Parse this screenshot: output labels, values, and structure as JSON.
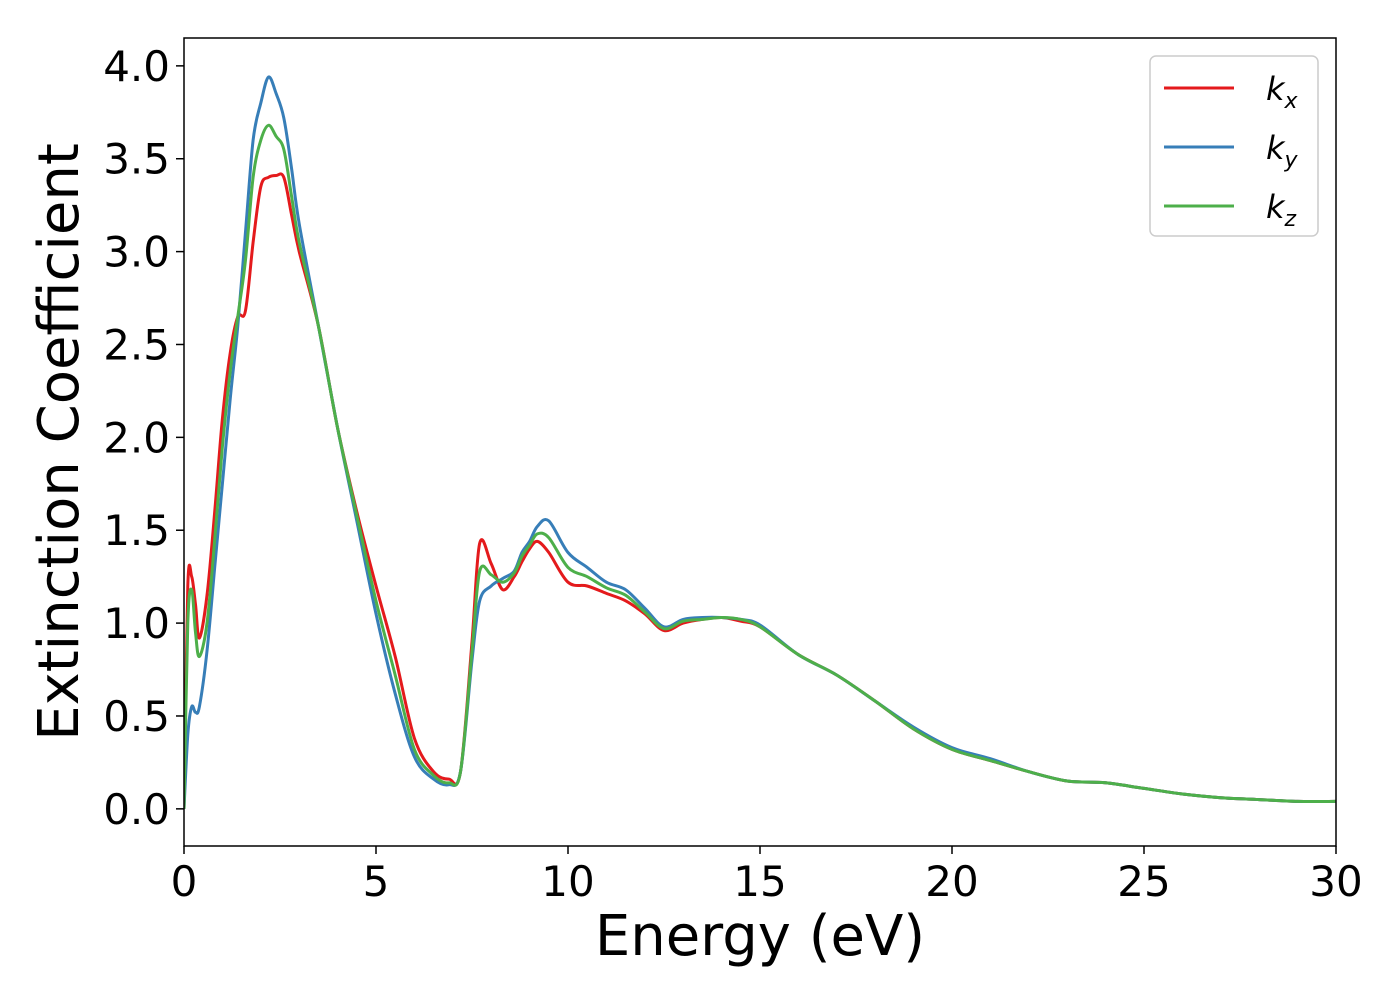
{
  "chart_data": {
    "type": "line",
    "xlabel": "Energy (eV)",
    "ylabel": "Extinction Coefficient",
    "xlim": [
      0,
      30
    ],
    "ylim": [
      -0.2,
      4.15
    ],
    "xticks": [
      0,
      5,
      10,
      15,
      20,
      25,
      30
    ],
    "yticks": [
      0.0,
      0.5,
      1.0,
      1.5,
      2.0,
      2.5,
      3.0,
      3.5,
      4.0
    ],
    "grid": false,
    "legend_position": "top-right",
    "series": [
      {
        "name": "k",
        "subscript": "x",
        "color": "#e41a1c",
        "x": [
          0,
          0.1,
          0.2,
          0.3,
          0.4,
          0.6,
          0.8,
          1.0,
          1.2,
          1.4,
          1.6,
          1.8,
          2.0,
          2.2,
          2.4,
          2.6,
          2.8,
          3.0,
          3.5,
          4.0,
          4.5,
          5.0,
          5.5,
          6.0,
          6.5,
          6.9,
          7.2,
          7.5,
          7.7,
          8.0,
          8.3,
          8.6,
          8.8,
          9.0,
          9.2,
          9.5,
          10.0,
          10.5,
          11.0,
          11.5,
          12.0,
          12.5,
          13.0,
          13.5,
          14.0,
          14.5,
          15.0,
          16.0,
          17.0,
          18.0,
          19.0,
          20.0,
          21.0,
          22.0,
          23.0,
          24.0,
          25.0,
          26.0,
          27.0,
          28.0,
          29.0,
          30.0
        ],
        "y": [
          0.0,
          1.2,
          1.25,
          1.1,
          0.92,
          1.15,
          1.6,
          2.1,
          2.45,
          2.65,
          2.68,
          3.05,
          3.35,
          3.4,
          3.41,
          3.4,
          3.2,
          3.0,
          2.6,
          2.05,
          1.6,
          1.2,
          0.82,
          0.38,
          0.2,
          0.16,
          0.2,
          0.9,
          1.43,
          1.32,
          1.18,
          1.25,
          1.33,
          1.4,
          1.44,
          1.38,
          1.22,
          1.2,
          1.16,
          1.12,
          1.05,
          0.96,
          1.0,
          1.02,
          1.03,
          1.01,
          0.98,
          0.83,
          0.72,
          0.58,
          0.43,
          0.32,
          0.26,
          0.2,
          0.15,
          0.14,
          0.11,
          0.08,
          0.06,
          0.05,
          0.04,
          0.04
        ]
      },
      {
        "name": "k",
        "subscript": "y",
        "color": "#377eb8",
        "x": [
          0,
          0.1,
          0.2,
          0.3,
          0.4,
          0.6,
          0.8,
          1.0,
          1.2,
          1.4,
          1.6,
          1.8,
          2.0,
          2.2,
          2.4,
          2.6,
          2.8,
          3.0,
          3.5,
          4.0,
          4.5,
          5.0,
          5.5,
          6.0,
          6.5,
          6.9,
          7.2,
          7.5,
          7.7,
          8.0,
          8.3,
          8.6,
          8.8,
          9.0,
          9.2,
          9.5,
          10.0,
          10.5,
          11.0,
          11.5,
          12.0,
          12.5,
          13.0,
          13.5,
          14.0,
          14.5,
          15.0,
          16.0,
          17.0,
          18.0,
          19.0,
          20.0,
          21.0,
          22.0,
          23.0,
          24.0,
          25.0,
          26.0,
          27.0,
          28.0,
          29.0,
          30.0
        ],
        "y": [
          0.0,
          0.4,
          0.55,
          0.52,
          0.55,
          0.85,
          1.3,
          1.75,
          2.2,
          2.6,
          3.1,
          3.6,
          3.8,
          3.94,
          3.85,
          3.72,
          3.45,
          3.15,
          2.6,
          2.05,
          1.55,
          1.05,
          0.62,
          0.28,
          0.16,
          0.13,
          0.2,
          0.8,
          1.12,
          1.2,
          1.24,
          1.28,
          1.38,
          1.44,
          1.52,
          1.55,
          1.38,
          1.3,
          1.22,
          1.18,
          1.08,
          0.98,
          1.02,
          1.03,
          1.03,
          1.02,
          0.99,
          0.83,
          0.72,
          0.58,
          0.44,
          0.33,
          0.27,
          0.2,
          0.15,
          0.14,
          0.11,
          0.08,
          0.06,
          0.05,
          0.04,
          0.04
        ]
      },
      {
        "name": "k",
        "subscript": "z",
        "color": "#4daf4a",
        "x": [
          0,
          0.1,
          0.2,
          0.3,
          0.4,
          0.6,
          0.8,
          1.0,
          1.2,
          1.4,
          1.6,
          1.8,
          2.0,
          2.2,
          2.4,
          2.6,
          2.8,
          3.0,
          3.5,
          4.0,
          4.5,
          5.0,
          5.5,
          6.0,
          6.5,
          6.9,
          7.2,
          7.5,
          7.7,
          8.0,
          8.3,
          8.6,
          8.8,
          9.0,
          9.2,
          9.5,
          10.0,
          10.5,
          11.0,
          11.5,
          12.0,
          12.5,
          13.0,
          13.5,
          14.0,
          14.5,
          15.0,
          16.0,
          17.0,
          18.0,
          19.0,
          20.0,
          21.0,
          22.0,
          23.0,
          24.0,
          25.0,
          26.0,
          27.0,
          28.0,
          29.0,
          30.0
        ],
        "y": [
          0.0,
          1.0,
          1.18,
          0.95,
          0.82,
          1.0,
          1.45,
          1.95,
          2.35,
          2.65,
          2.95,
          3.4,
          3.6,
          3.68,
          3.62,
          3.55,
          3.3,
          3.05,
          2.6,
          2.05,
          1.58,
          1.12,
          0.72,
          0.32,
          0.18,
          0.14,
          0.2,
          0.85,
          1.28,
          1.26,
          1.22,
          1.27,
          1.36,
          1.42,
          1.48,
          1.46,
          1.3,
          1.25,
          1.19,
          1.15,
          1.06,
          0.97,
          1.01,
          1.02,
          1.03,
          1.02,
          0.98,
          0.83,
          0.72,
          0.58,
          0.43,
          0.32,
          0.26,
          0.2,
          0.15,
          0.14,
          0.11,
          0.08,
          0.06,
          0.05,
          0.04,
          0.04
        ]
      }
    ]
  }
}
